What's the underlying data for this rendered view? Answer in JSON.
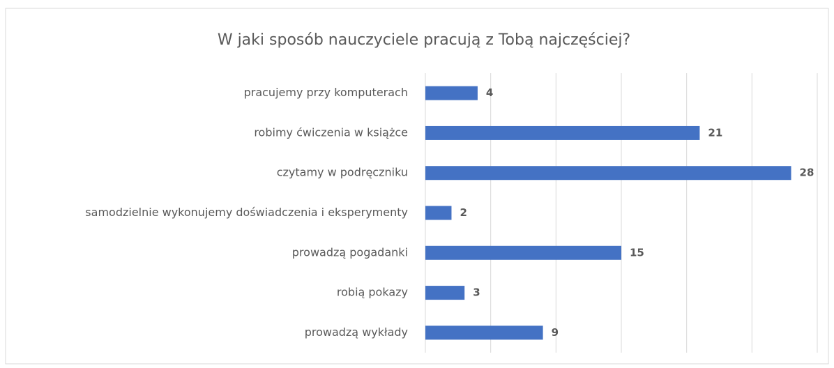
{
  "chart_data": {
    "type": "bar",
    "orientation": "horizontal",
    "title": "W jaki sposób nauczyciele pracują z Tobą najczęściej?",
    "categories": [
      "pracujemy przy komputerach",
      "robimy ćwiczenia w książce",
      "czytamy w podręczniku",
      "samodzielnie wykonujemy doświadczenia i eksperymenty",
      "prowadzą pogadanki",
      "robią pokazy",
      "prowadzą wykłady"
    ],
    "values": [
      4,
      21,
      28,
      2,
      15,
      3,
      9
    ],
    "color": "#4472c4",
    "xlim": [
      0,
      30
    ],
    "xticks": [
      0,
      5,
      10,
      15,
      20,
      25,
      30
    ],
    "grid": true
  }
}
